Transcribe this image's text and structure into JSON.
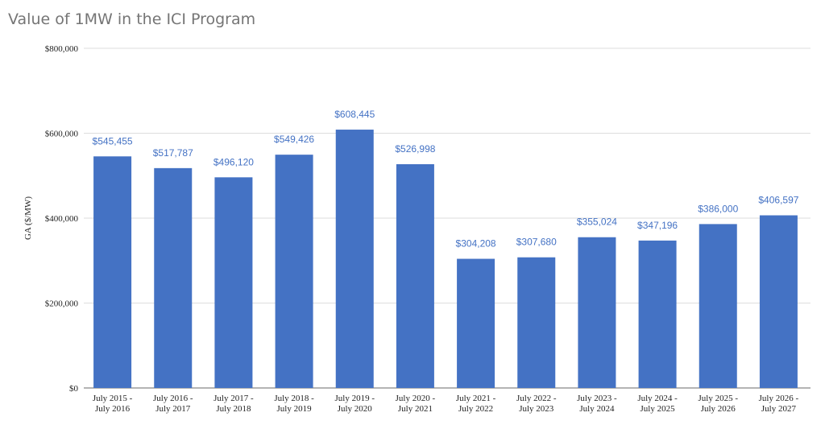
{
  "chart_data": {
    "type": "bar",
    "title": "Value of 1MW in the ICI Program",
    "xlabel": "",
    "ylabel": "GA ($/MW)",
    "ylim": [
      0,
      800000
    ],
    "yticks": [
      0,
      200000,
      400000,
      600000,
      800000
    ],
    "ytick_labels": [
      "$0",
      "$200,000",
      "$400,000",
      "$600,000",
      "$800,000"
    ],
    "grid": true,
    "legend": "none",
    "bar_color": "#4472c4",
    "categories": [
      [
        "July 2015 -",
        "July 2016"
      ],
      [
        "July 2016 -",
        "July 2017"
      ],
      [
        "July 2017 -",
        "July 2018"
      ],
      [
        "July 2018 -",
        "July 2019"
      ],
      [
        "July 2019 -",
        "July 2020"
      ],
      [
        "July 2020 -",
        "July 2021"
      ],
      [
        "July 2021 -",
        "July 2022"
      ],
      [
        "July 2022 -",
        "July 2023"
      ],
      [
        "July 2023 -",
        "July 2024"
      ],
      [
        "July 2024 -",
        "July 2025"
      ],
      [
        "July 2025 -",
        "July 2026"
      ],
      [
        "July 2026 -",
        "July 2027"
      ]
    ],
    "values": [
      545455,
      517787,
      496120,
      549426,
      608445,
      526998,
      304208,
      307680,
      355024,
      347196,
      386000,
      406597
    ],
    "data_labels": [
      "$545,455",
      "$517,787",
      "$496,120",
      "$549,426",
      "$608,445",
      "$526,998",
      "$304,208",
      "$307,680",
      "$355,024",
      "$347,196",
      "$386,000",
      "$406,597"
    ]
  }
}
